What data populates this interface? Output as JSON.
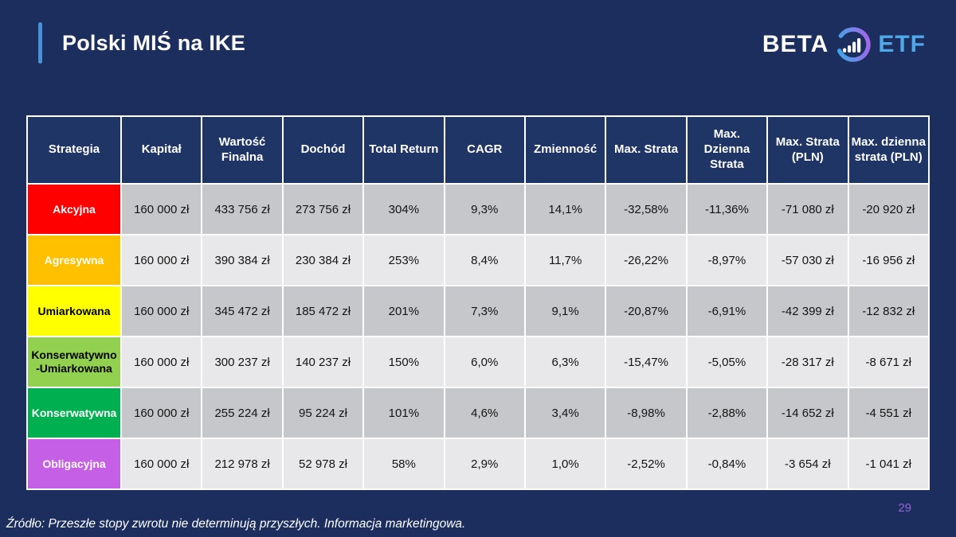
{
  "slide": {
    "title": "Polski MIŚ na IKE",
    "footer": "Źródło: Przeszłe stopy zwrotu nie determinują przyszłych. Informacja marketingowa.",
    "page_number": "29",
    "background_color": "#1c2e5d",
    "accent_color": "#4a90d9"
  },
  "logo": {
    "beta": "BETA",
    "etf": "ETF",
    "etf_color": "#4fa8e8",
    "icon": "bar-chart-ring-icon",
    "ring_gradient_start": "#b35ce8",
    "ring_gradient_end": "#2bb3e8"
  },
  "table": {
    "columns": [
      "Strategia",
      "Kapitał",
      "Wartość Finalna",
      "Dochód",
      "Total Return",
      "CAGR",
      "Zmienność",
      "Max. Strata",
      "Max. Dzienna Strata",
      "Max. Strata (PLN)",
      "Max. dzienna strata (PLN)"
    ],
    "rows": [
      {
        "strategy": "Akcyjna",
        "color": "#FF0000",
        "text_color": "#FFFFFF",
        "values": [
          "160 000 zł",
          "433 756 zł",
          "273 756 zł",
          "304%",
          "9,3%",
          "14,1%",
          "-32,58%",
          "-11,36%",
          "-71 080 zł",
          "-20 920 zł"
        ]
      },
      {
        "strategy": "Agresywna",
        "color": "#FFC000",
        "text_color": "#FFFFFF",
        "values": [
          "160 000 zł",
          "390 384 zł",
          "230 384 zł",
          "253%",
          "8,4%",
          "11,7%",
          "-26,22%",
          "-8,97%",
          "-57 030 zł",
          "-16 956 zł"
        ]
      },
      {
        "strategy": "Umiarkowana",
        "color": "#FFFF00",
        "text_color": "#000000",
        "values": [
          "160 000 zł",
          "345 472 zł",
          "185 472 zł",
          "201%",
          "7,3%",
          "9,1%",
          "-20,87%",
          "-6,91%",
          "-42 399 zł",
          "-12 832 zł"
        ]
      },
      {
        "strategy": "Konserwatywno\n-Umiarkowana",
        "color": "#92D050",
        "text_color": "#000000",
        "values": [
          "160 000 zł",
          "300 237 zł",
          "140 237 zł",
          "150%",
          "6,0%",
          "6,3%",
          "-15,47%",
          "-5,05%",
          "-28 317 zł",
          "-8 671 zł"
        ]
      },
      {
        "strategy": "Konserwatywna",
        "color": "#00B050",
        "text_color": "#FFFFFF",
        "values": [
          "160 000 zł",
          "255 224 zł",
          "95 224 zł",
          "101%",
          "4,6%",
          "3,4%",
          "-8,98%",
          "-2,88%",
          "-14 652 zł",
          "-4 551 zł"
        ]
      },
      {
        "strategy": "Obligacyjna",
        "color": "#C55FE6",
        "text_color": "#FFFFFF",
        "values": [
          "160 000 zł",
          "212 978 zł",
          "52 978 zł",
          "58%",
          "2,9%",
          "1,0%",
          "-2,52%",
          "-0,84%",
          "-3 654 zł",
          "-1 041 zł"
        ]
      }
    ],
    "row_bg_odd": "#c6c7ca",
    "row_bg_even": "#e8e8ea"
  }
}
